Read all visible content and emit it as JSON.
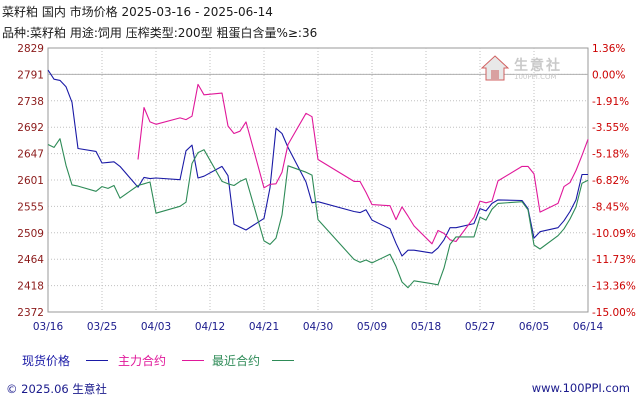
{
  "header": {
    "title": "菜籽粕 国内 市场价格 2025-03-16 - 2025-06-14",
    "subtitle": "品种:菜籽粕 用途:饲用 压榨类型:200型 粗蛋白含量%≥:36"
  },
  "watermark": {
    "brand": "生意社",
    "url": "100PPI.COM"
  },
  "footer": {
    "copyright": "© 2025.06 生意社",
    "site": "www.100PPI.com"
  },
  "colors": {
    "spot": "#1a1aa6",
    "main": "#e0189a",
    "recent": "#2e8b57",
    "axis_text_left": "#8b1a1a",
    "axis_text_right": "#cc0000",
    "grid": "#c0c0c0"
  },
  "chart_data": {
    "type": "line",
    "title": "菜籽粕 国内 市场价格 2025-03-16 - 2025-06-14",
    "y_ticks": [
      "2829",
      "2791",
      "2738",
      "2692",
      "2647",
      "2601",
      "2555",
      "2509",
      "2464",
      "2418",
      "2372"
    ],
    "y2_ticks": [
      "1.36%",
      "0.00%",
      "-1.91%",
      "-3.55%",
      "-5.18%",
      "-6.82%",
      "-8.45%",
      "-10.09%",
      "-11.73%",
      "-13.36%",
      "-15.00%"
    ],
    "ylim": [
      2372,
      2829
    ],
    "x_ticks": [
      "03/16",
      "03/25",
      "04/03",
      "04/12",
      "04/21",
      "04/30",
      "05/09",
      "05/18",
      "05/27",
      "06/05",
      "06/14"
    ],
    "legend_position": "bottom-left",
    "grid": true,
    "series": [
      {
        "name": "现货价格",
        "color": "#1a1aa6",
        "points": [
          [
            "2025-03-16",
            2791
          ],
          [
            "2025-03-17",
            2775
          ],
          [
            "2025-03-18",
            2773
          ],
          [
            "2025-03-19",
            2762
          ],
          [
            "2025-03-20",
            2735
          ],
          [
            "2025-03-21",
            2655
          ],
          [
            "2025-03-24",
            2650
          ],
          [
            "2025-03-25",
            2630
          ],
          [
            "2025-03-26",
            2631
          ],
          [
            "2025-03-27",
            2632
          ],
          [
            "2025-03-28",
            2624
          ],
          [
            "2025-03-31",
            2588
          ],
          [
            "2025-04-01",
            2605
          ],
          [
            "2025-04-02",
            2603
          ],
          [
            "2025-04-03",
            2604
          ],
          [
            "2025-04-07",
            2601
          ],
          [
            "2025-04-08",
            2651
          ],
          [
            "2025-04-09",
            2661
          ],
          [
            "2025-04-10",
            2604
          ],
          [
            "2025-04-11",
            2607
          ],
          [
            "2025-04-14",
            2624
          ],
          [
            "2025-04-15",
            2608
          ],
          [
            "2025-04-16",
            2524
          ],
          [
            "2025-04-17",
            2519
          ],
          [
            "2025-04-18",
            2514
          ],
          [
            "2025-04-21",
            2534
          ],
          [
            "2025-04-22",
            2587
          ],
          [
            "2025-04-23",
            2690
          ],
          [
            "2025-04-24",
            2681
          ],
          [
            "2025-04-25",
            2657
          ],
          [
            "2025-04-28",
            2597
          ],
          [
            "2025-04-29",
            2561
          ],
          [
            "2025-04-30",
            2563
          ],
          [
            "2025-05-06",
            2546
          ],
          [
            "2025-05-07",
            2544
          ],
          [
            "2025-05-08",
            2549
          ],
          [
            "2025-05-09",
            2531
          ],
          [
            "2025-05-12",
            2516
          ],
          [
            "2025-05-13",
            2491
          ],
          [
            "2025-05-14",
            2469
          ],
          [
            "2025-05-15",
            2479
          ],
          [
            "2025-05-16",
            2479
          ],
          [
            "2025-05-19",
            2474
          ],
          [
            "2025-05-20",
            2483
          ],
          [
            "2025-05-21",
            2497
          ],
          [
            "2025-05-22",
            2518
          ],
          [
            "2025-05-23",
            2518
          ],
          [
            "2025-05-26",
            2525
          ],
          [
            "2025-05-27",
            2551
          ],
          [
            "2025-05-28",
            2547
          ],
          [
            "2025-05-29",
            2560
          ],
          [
            "2025-05-30",
            2566
          ],
          [
            "2025-06-03",
            2565
          ],
          [
            "2025-06-04",
            2551
          ],
          [
            "2025-06-05",
            2500
          ],
          [
            "2025-06-06",
            2511
          ],
          [
            "2025-06-09",
            2518
          ],
          [
            "2025-06-10",
            2530
          ],
          [
            "2025-06-11",
            2546
          ],
          [
            "2025-06-12",
            2566
          ],
          [
            "2025-06-13",
            2610
          ],
          [
            "2025-06-14",
            2610
          ]
        ]
      },
      {
        "name": "主力合约",
        "color": "#e0189a",
        "points": [
          [
            "2025-03-16",
            null
          ],
          [
            "2025-03-17",
            null
          ],
          [
            "2025-03-18",
            null
          ],
          [
            "2025-03-19",
            null
          ],
          [
            "2025-03-20",
            null
          ],
          [
            "2025-03-21",
            null
          ],
          [
            "2025-03-24",
            null
          ],
          [
            "2025-03-25",
            null
          ],
          [
            "2025-03-26",
            null
          ],
          [
            "2025-03-27",
            null
          ],
          [
            "2025-03-28",
            null
          ],
          [
            "2025-03-31",
            2636
          ],
          [
            "2025-04-01",
            2726
          ],
          [
            "2025-04-02",
            2701
          ],
          [
            "2025-04-03",
            2697
          ],
          [
            "2025-04-07",
            2708
          ],
          [
            "2025-04-08",
            2705
          ],
          [
            "2025-04-09",
            2711
          ],
          [
            "2025-04-10",
            2766
          ],
          [
            "2025-04-11",
            2748
          ],
          [
            "2025-04-14",
            2751
          ],
          [
            "2025-04-15",
            2694
          ],
          [
            "2025-04-16",
            2681
          ],
          [
            "2025-04-17",
            2685
          ],
          [
            "2025-04-18",
            2701
          ],
          [
            "2025-04-21",
            2587
          ],
          [
            "2025-04-22",
            2593
          ],
          [
            "2025-04-23",
            2594
          ],
          [
            "2025-04-24",
            2614
          ],
          [
            "2025-04-25",
            2662
          ],
          [
            "2025-04-28",
            2716
          ],
          [
            "2025-04-29",
            2710
          ],
          [
            "2025-04-30",
            2636
          ],
          [
            "2025-05-06",
            2598
          ],
          [
            "2025-05-07",
            2598
          ],
          [
            "2025-05-08",
            2579
          ],
          [
            "2025-05-09",
            2558
          ],
          [
            "2025-05-12",
            2556
          ],
          [
            "2025-05-13",
            2532
          ],
          [
            "2025-05-14",
            2554
          ],
          [
            "2025-05-15",
            2538
          ],
          [
            "2025-05-16",
            2521
          ],
          [
            "2025-05-19",
            2490
          ],
          [
            "2025-05-20",
            2513
          ],
          [
            "2025-05-21",
            2508
          ],
          [
            "2025-05-22",
            2497
          ],
          [
            "2025-05-23",
            2494
          ],
          [
            "2025-05-26",
            2536
          ],
          [
            "2025-05-27",
            2564
          ],
          [
            "2025-05-28",
            2561
          ],
          [
            "2025-05-29",
            2564
          ],
          [
            "2025-05-30",
            2599
          ],
          [
            "2025-06-03",
            2624
          ],
          [
            "2025-06-04",
            2624
          ],
          [
            "2025-06-05",
            2611
          ],
          [
            "2025-06-06",
            2545
          ],
          [
            "2025-06-09",
            2560
          ],
          [
            "2025-06-10",
            2589
          ],
          [
            "2025-06-11",
            2596
          ],
          [
            "2025-06-12",
            2617
          ],
          [
            "2025-06-13",
            2643
          ],
          [
            "2025-06-14",
            2671
          ]
        ]
      },
      {
        "name": "最近合约",
        "color": "#2e8b57",
        "points": [
          [
            "2025-03-16",
            2662
          ],
          [
            "2025-03-17",
            2657
          ],
          [
            "2025-03-18",
            2672
          ],
          [
            "2025-03-19",
            2626
          ],
          [
            "2025-03-20",
            2592
          ],
          [
            "2025-03-21",
            2590
          ],
          [
            "2025-03-24",
            2581
          ],
          [
            "2025-03-25",
            2589
          ],
          [
            "2025-03-26",
            2586
          ],
          [
            "2025-03-27",
            2591
          ],
          [
            "2025-03-28",
            2569
          ],
          [
            "2025-03-31",
            2591
          ],
          [
            "2025-04-01",
            2594
          ],
          [
            "2025-04-02",
            2597
          ],
          [
            "2025-04-03",
            2543
          ],
          [
            "2025-04-07",
            2555
          ],
          [
            "2025-04-08",
            2562
          ],
          [
            "2025-04-09",
            2629
          ],
          [
            "2025-04-10",
            2648
          ],
          [
            "2025-04-11",
            2653
          ],
          [
            "2025-04-14",
            2598
          ],
          [
            "2025-04-15",
            2594
          ],
          [
            "2025-04-16",
            2591
          ],
          [
            "2025-04-17",
            2598
          ],
          [
            "2025-04-18",
            2603
          ],
          [
            "2025-04-21",
            2495
          ],
          [
            "2025-04-22",
            2489
          ],
          [
            "2025-04-23",
            2500
          ],
          [
            "2025-04-24",
            2540
          ],
          [
            "2025-04-25",
            2625
          ],
          [
            "2025-04-28",
            2614
          ],
          [
            "2025-04-29",
            2609
          ],
          [
            "2025-04-30",
            2532
          ],
          [
            "2025-05-06",
            2463
          ],
          [
            "2025-05-07",
            2458
          ],
          [
            "2025-05-08",
            2462
          ],
          [
            "2025-05-09",
            2457
          ],
          [
            "2025-05-12",
            2472
          ],
          [
            "2025-05-13",
            2451
          ],
          [
            "2025-05-14",
            2424
          ],
          [
            "2025-05-15",
            2414
          ],
          [
            "2025-05-16",
            2426
          ],
          [
            "2025-05-19",
            2421
          ],
          [
            "2025-05-20",
            2419
          ],
          [
            "2025-05-21",
            2448
          ],
          [
            "2025-05-22",
            2489
          ],
          [
            "2025-05-23",
            2502
          ],
          [
            "2025-05-26",
            2502
          ],
          [
            "2025-05-27",
            2536
          ],
          [
            "2025-05-28",
            2531
          ],
          [
            "2025-05-29",
            2550
          ],
          [
            "2025-05-30",
            2560
          ],
          [
            "2025-06-03",
            2563
          ],
          [
            "2025-06-04",
            2549
          ],
          [
            "2025-06-05",
            2488
          ],
          [
            "2025-06-06",
            2481
          ],
          [
            "2025-06-09",
            2504
          ],
          [
            "2025-06-10",
            2516
          ],
          [
            "2025-06-11",
            2533
          ],
          [
            "2025-06-12",
            2554
          ],
          [
            "2025-06-13",
            2595
          ],
          [
            "2025-06-14",
            2600
          ]
        ]
      }
    ]
  }
}
